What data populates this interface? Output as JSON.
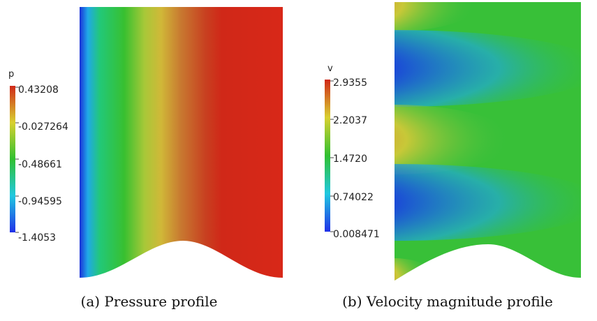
{
  "figure_a": {
    "caption": "(a) Pressure profile",
    "legend_title": "p",
    "legend_ticks": [
      "0.43208",
      "-0.027264",
      "-0.48661",
      "-0.94595",
      "-1.4053"
    ]
  },
  "figure_b": {
    "caption": "(b) Velocity magnitude profile",
    "legend_title": "v",
    "legend_ticks": [
      "2.9355",
      "2.2037",
      "1.4720",
      "0.74022",
      "0.008471"
    ]
  },
  "colormap": [
    "#2030e8",
    "#20c8e0",
    "#30c030",
    "#d8d030",
    "#d02818"
  ]
}
